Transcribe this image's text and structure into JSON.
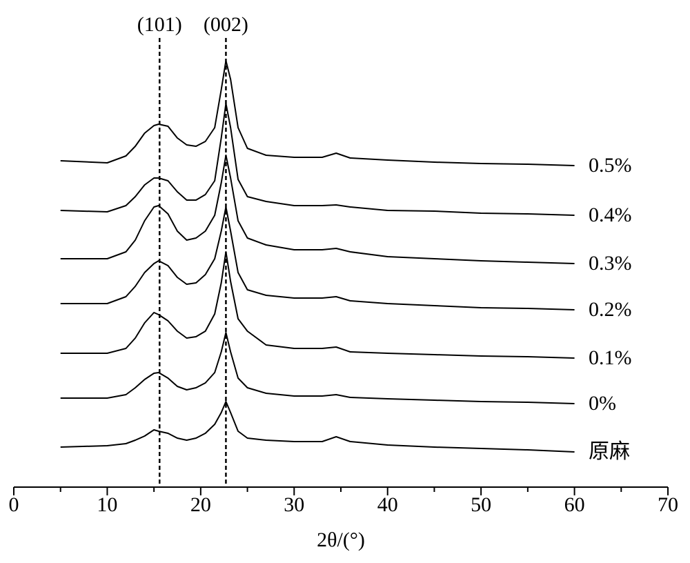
{
  "chart_data": {
    "type": "line",
    "xlabel": "2θ/(°)",
    "xlim": [
      0,
      70
    ],
    "xticks": [
      0,
      10,
      20,
      30,
      40,
      50,
      60,
      70
    ],
    "xminorticks": [
      5,
      15,
      25,
      35,
      45,
      55,
      65
    ],
    "ylim": [
      0,
      690
    ],
    "annotations": [
      {
        "x": 15.6,
        "label": "(101)"
      },
      {
        "x": 22.7,
        "label": "(002)"
      }
    ],
    "x": [
      5,
      10,
      12,
      13,
      14,
      15,
      15.5,
      16.5,
      17.5,
      18.5,
      19.5,
      20.5,
      21.5,
      22.2,
      22.7,
      23.2,
      24,
      25,
      27,
      30,
      33,
      34.5,
      36,
      40,
      45,
      50,
      55,
      60
    ],
    "series": [
      {
        "name": "0.5%",
        "color": "#000000",
        "values": [
          473,
          470,
          480,
          494,
          513,
          524,
          526,
          523,
          506,
          496,
          494,
          501,
          521,
          576,
          618,
          591,
          521,
          491,
          481,
          478,
          478,
          484,
          477,
          474,
          471,
          469,
          468,
          466
        ]
      },
      {
        "name": "0.4%",
        "color": "#000000",
        "values": [
          401,
          399,
          408,
          421,
          438,
          448,
          448,
          444,
          428,
          416,
          416,
          424,
          444,
          506,
          556,
          521,
          446,
          421,
          414,
          408,
          408,
          409,
          406,
          401,
          400,
          397,
          396,
          394
        ]
      },
      {
        "name": "0.3%",
        "color": "#000000",
        "values": [
          331,
          331,
          341,
          358,
          386,
          406,
          408,
          396,
          371,
          358,
          361,
          371,
          394,
          441,
          481,
          448,
          386,
          361,
          351,
          344,
          344,
          346,
          341,
          334,
          331,
          328,
          326,
          324
        ]
      },
      {
        "name": "0.2%",
        "color": "#000000",
        "values": [
          266,
          266,
          276,
          291,
          311,
          324,
          328,
          321,
          304,
          294,
          296,
          308,
          331,
          371,
          406,
          371,
          311,
          286,
          278,
          274,
          274,
          276,
          270,
          266,
          263,
          260,
          259,
          257
        ]
      },
      {
        "name": "0.1%",
        "color": "#000000",
        "values": [
          194,
          194,
          201,
          216,
          238,
          253,
          250,
          241,
          226,
          216,
          218,
          226,
          251,
          296,
          341,
          298,
          244,
          226,
          206,
          201,
          201,
          203,
          196,
          194,
          192,
          190,
          189,
          187
        ]
      },
      {
        "name": "0%",
        "color": "#000000",
        "values": [
          129,
          129,
          134,
          144,
          156,
          165,
          166,
          158,
          146,
          141,
          144,
          151,
          166,
          196,
          224,
          196,
          158,
          144,
          136,
          132,
          132,
          134,
          130,
          128,
          126,
          124,
          123,
          121
        ]
      },
      {
        "name": "原麻",
        "color": "#000000",
        "values": [
          58,
          60,
          63,
          68,
          74,
          83,
          81,
          78,
          71,
          68,
          71,
          78,
          91,
          108,
          124,
          108,
          81,
          71,
          68,
          66,
          66,
          73,
          66,
          61,
          58,
          56,
          54,
          51
        ]
      }
    ]
  }
}
